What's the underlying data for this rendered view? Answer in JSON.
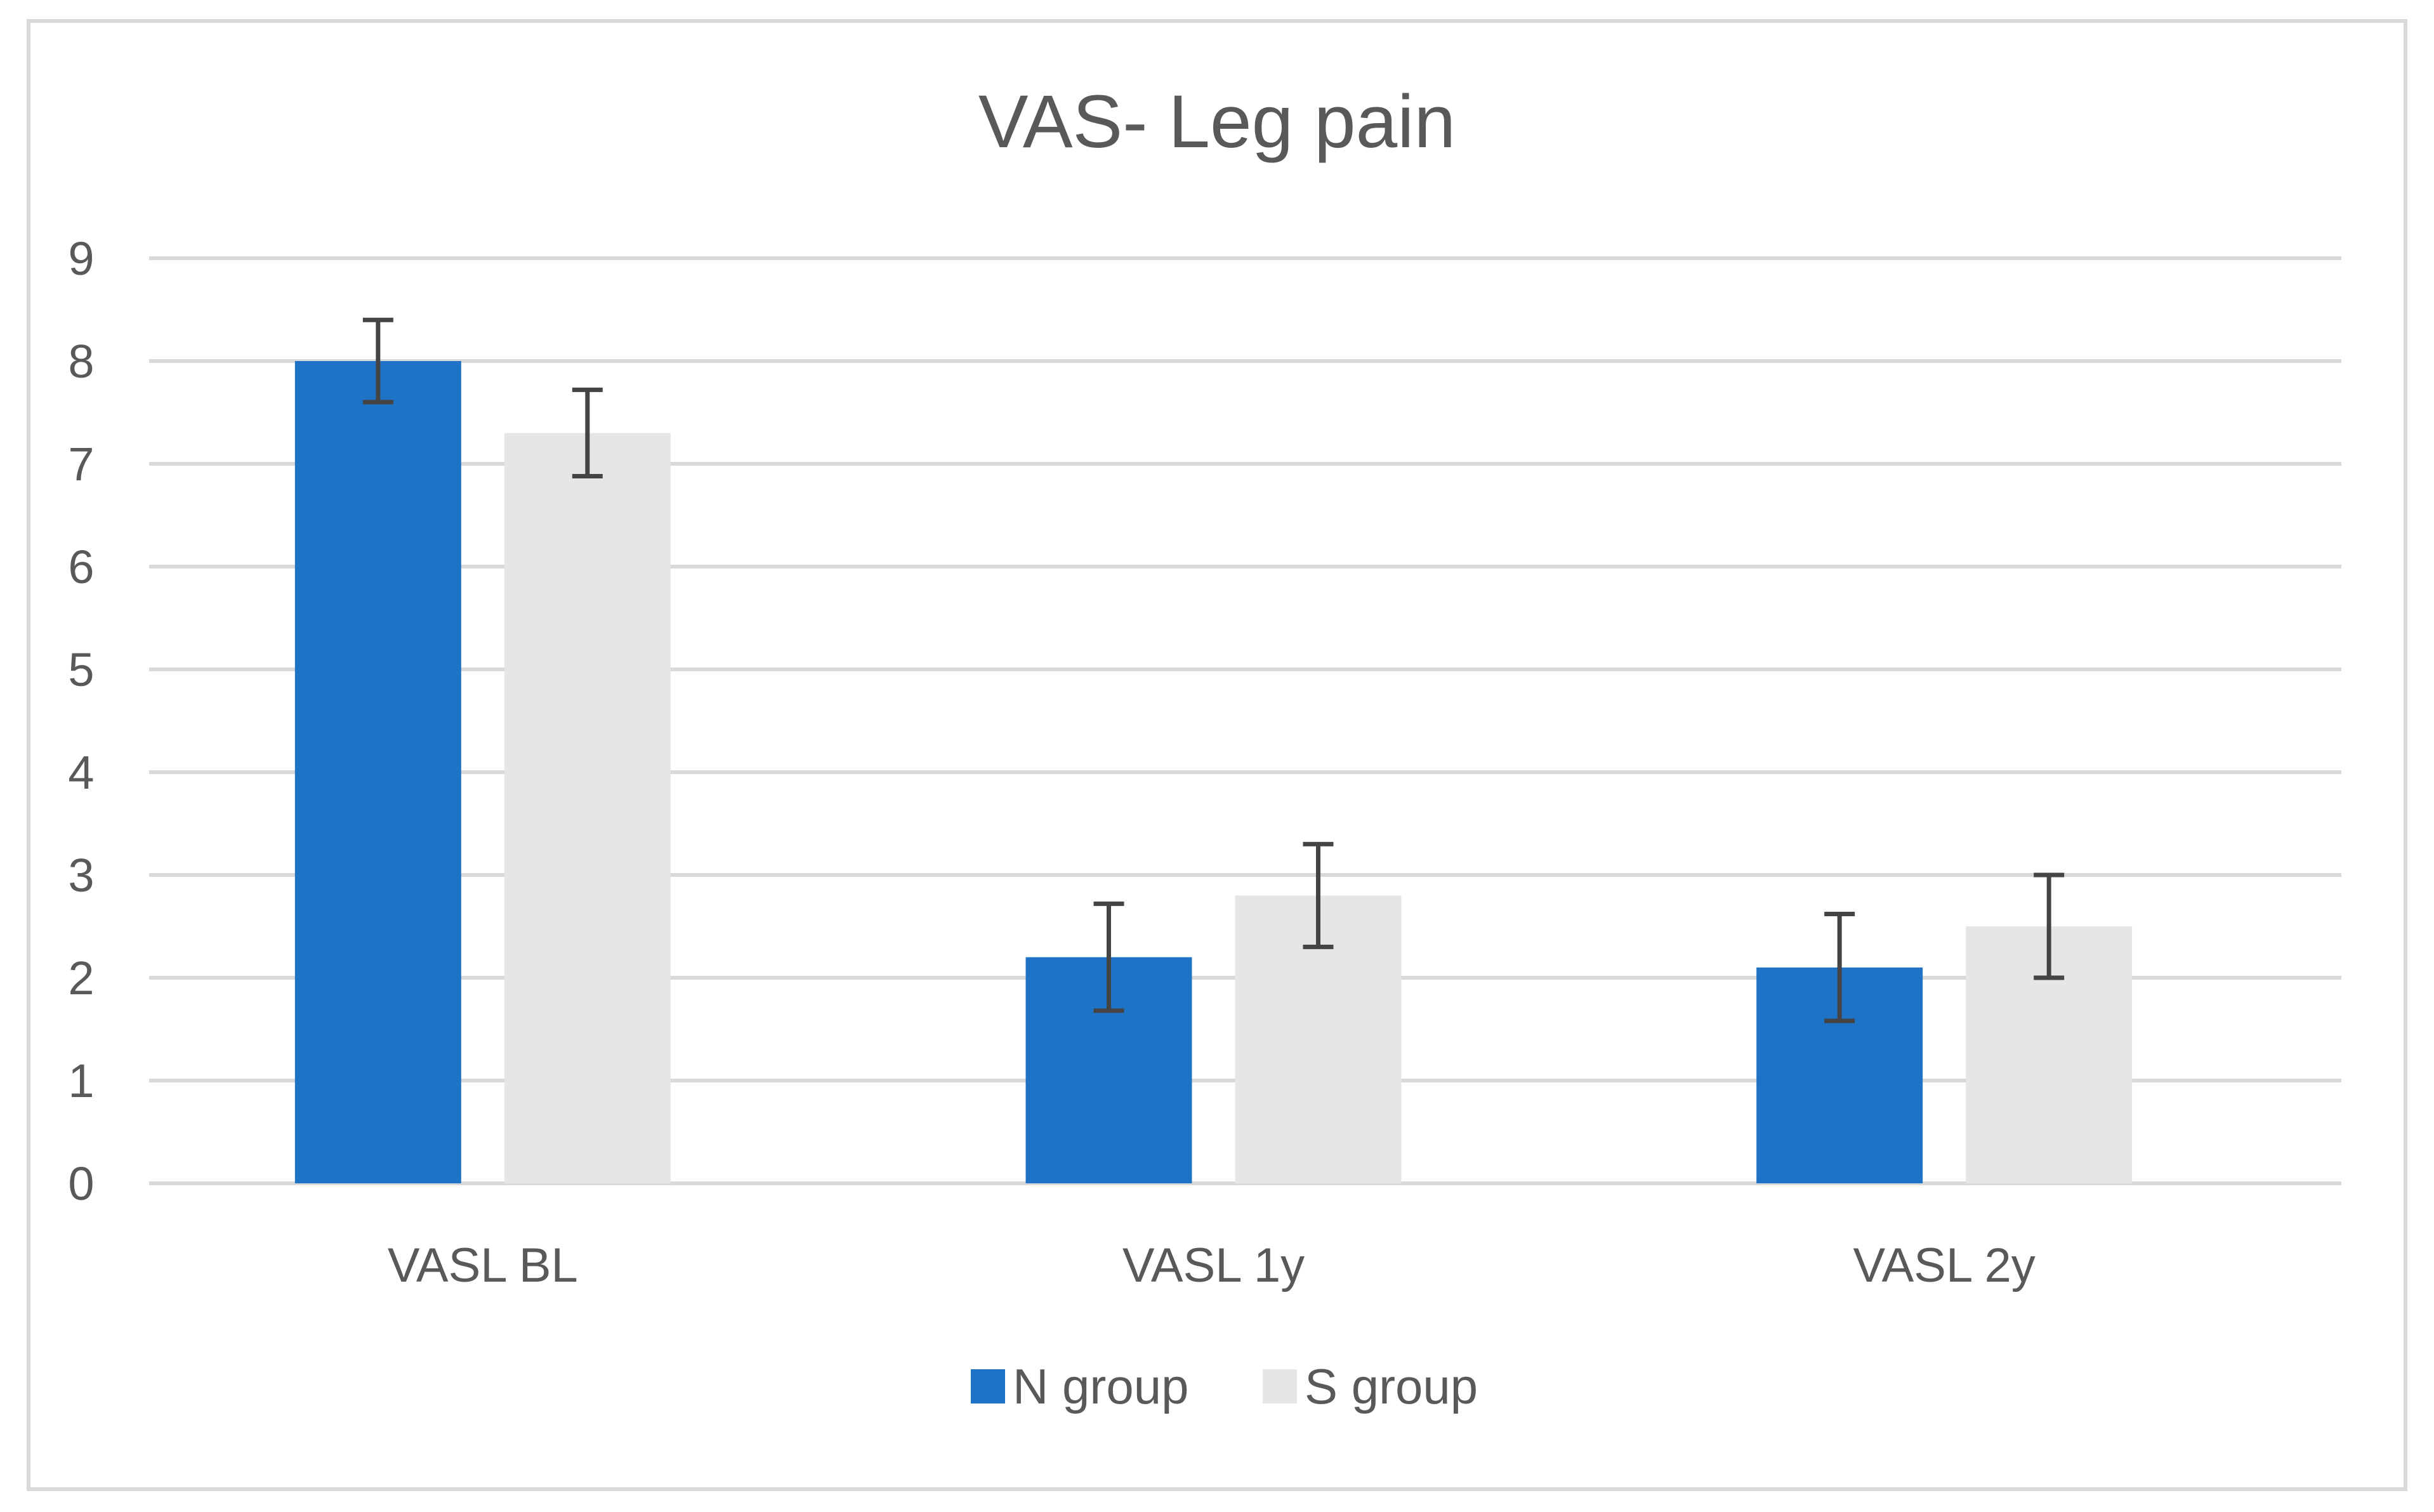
{
  "chart_data": {
    "type": "bar",
    "title": "VAS- Leg pain",
    "xlabel": "",
    "ylabel": "",
    "ylim": [
      0,
      9
    ],
    "yticks": [
      0,
      1,
      2,
      3,
      4,
      5,
      6,
      7,
      8,
      9
    ],
    "grid": true,
    "legend_position": "bottom",
    "categories": [
      "VASL BL",
      "VASL 1y",
      "VASL 2y"
    ],
    "series": [
      {
        "name": "N group",
        "color": "#1f73c6",
        "values": [
          8.0,
          2.2,
          2.1
        ],
        "error": [
          0.4,
          0.52,
          0.52
        ]
      },
      {
        "name": "S group",
        "color": "#e6e6e6",
        "values": [
          7.3,
          2.8,
          2.5
        ],
        "error": [
          0.42,
          0.5,
          0.5
        ]
      }
    ]
  }
}
